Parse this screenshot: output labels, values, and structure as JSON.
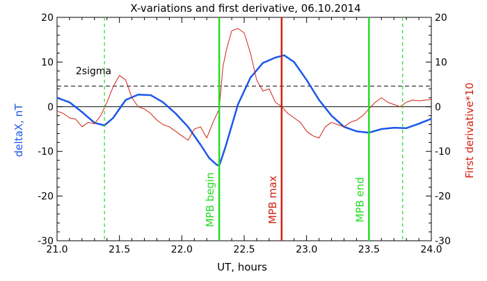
{
  "chart_data": {
    "type": "line",
    "title": "X-variations and first derivative, 06.10.2014",
    "xlabel": "UT, hours",
    "ylabel_left": "deltaX, nT",
    "ylabel_right": "First derivative*10",
    "xlim": [
      21.0,
      24.0
    ],
    "ylim_left": [
      -30,
      20
    ],
    "ylim_right": [
      -30,
      20
    ],
    "x_ticks": [
      "21.0",
      "21.5",
      "22.0",
      "22.5",
      "23.0",
      "23.5",
      "24.0"
    ],
    "y_ticks_left": [
      "-30",
      "-20",
      "-10",
      "0",
      "10",
      "20"
    ],
    "y_ticks_right": [
      "-30",
      "-20",
      "-10",
      "0",
      "10",
      "20"
    ],
    "sigma_label": "2sigma",
    "sigma_level": 4.6,
    "zero_level": 0,
    "colors": {
      "deltaX": "#1a56e8",
      "derivative": "#d02010",
      "mpb_begin_end": "#22dd22",
      "mpb_max": "#d02010",
      "axes": "#000000"
    },
    "series": [
      {
        "name": "deltaX",
        "axis": "left",
        "x": [
          21.0,
          21.1,
          21.2,
          21.3,
          21.38,
          21.45,
          21.55,
          21.65,
          21.75,
          21.85,
          21.95,
          22.05,
          22.15,
          22.22,
          22.28,
          22.3,
          22.35,
          22.45,
          22.55,
          22.65,
          22.75,
          22.82,
          22.9,
          23.0,
          23.1,
          23.2,
          23.3,
          23.4,
          23.5,
          23.6,
          23.7,
          23.8,
          23.9,
          24.0
        ],
        "y": [
          2.0,
          1.0,
          -1.2,
          -3.6,
          -4.2,
          -2.5,
          1.5,
          2.7,
          2.6,
          1.0,
          -1.5,
          -4.5,
          -8.5,
          -11.5,
          -13.0,
          -13.2,
          -9.0,
          0.5,
          6.5,
          9.8,
          11.0,
          11.5,
          10.0,
          6.0,
          1.5,
          -2.0,
          -4.5,
          -5.5,
          -5.8,
          -5.0,
          -4.7,
          -4.8,
          -3.8,
          -2.7
        ]
      },
      {
        "name": "First derivative*10",
        "axis": "right",
        "x": [
          21.0,
          21.05,
          21.1,
          21.15,
          21.2,
          21.25,
          21.3,
          21.35,
          21.4,
          21.45,
          21.5,
          21.55,
          21.6,
          21.65,
          21.7,
          21.75,
          21.8,
          21.85,
          21.9,
          21.95,
          22.0,
          22.05,
          22.1,
          22.15,
          22.2,
          22.25,
          22.3,
          22.33,
          22.36,
          22.4,
          22.45,
          22.5,
          22.55,
          22.6,
          22.65,
          22.7,
          22.75,
          22.8,
          22.85,
          22.9,
          22.95,
          23.0,
          23.05,
          23.1,
          23.15,
          23.2,
          23.25,
          23.3,
          23.35,
          23.4,
          23.45,
          23.5,
          23.55,
          23.6,
          23.65,
          23.7,
          23.75,
          23.8,
          23.85,
          23.9,
          23.95,
          24.0
        ],
        "y": [
          -1.0,
          -1.5,
          -2.5,
          -2.8,
          -4.5,
          -3.5,
          -3.8,
          -2.0,
          1.0,
          4.5,
          7.0,
          6.0,
          2.0,
          0.0,
          -0.5,
          -1.5,
          -3.0,
          -4.0,
          -4.5,
          -5.5,
          -6.5,
          -7.5,
          -5.0,
          -4.5,
          -7.0,
          -3.5,
          -0.5,
          9.0,
          13.0,
          17.0,
          17.5,
          16.5,
          12.0,
          6.0,
          3.5,
          4.0,
          1.0,
          0.0,
          -1.5,
          -2.5,
          -3.5,
          -5.5,
          -6.5,
          -7.0,
          -4.5,
          -3.5,
          -4.0,
          -4.5,
          -3.5,
          -3.0,
          -2.0,
          -0.5,
          1.0,
          2.0,
          1.0,
          0.5,
          0.0,
          1.0,
          1.5,
          1.3,
          1.5,
          1.6
        ]
      }
    ],
    "markers": [
      {
        "label": "MPB begin",
        "x": 22.3,
        "style": "solid",
        "color": "#22dd22"
      },
      {
        "label": "MPB max",
        "x": 22.8,
        "style": "solid",
        "color": "#d02010"
      },
      {
        "label": "MPB end",
        "x": 23.5,
        "style": "solid",
        "color": "#22dd22"
      },
      {
        "label": "",
        "x": 21.38,
        "style": "dashed",
        "color": "#22dd22"
      },
      {
        "label": "",
        "x": 23.77,
        "style": "dashed",
        "color": "#22dd22"
      }
    ]
  }
}
